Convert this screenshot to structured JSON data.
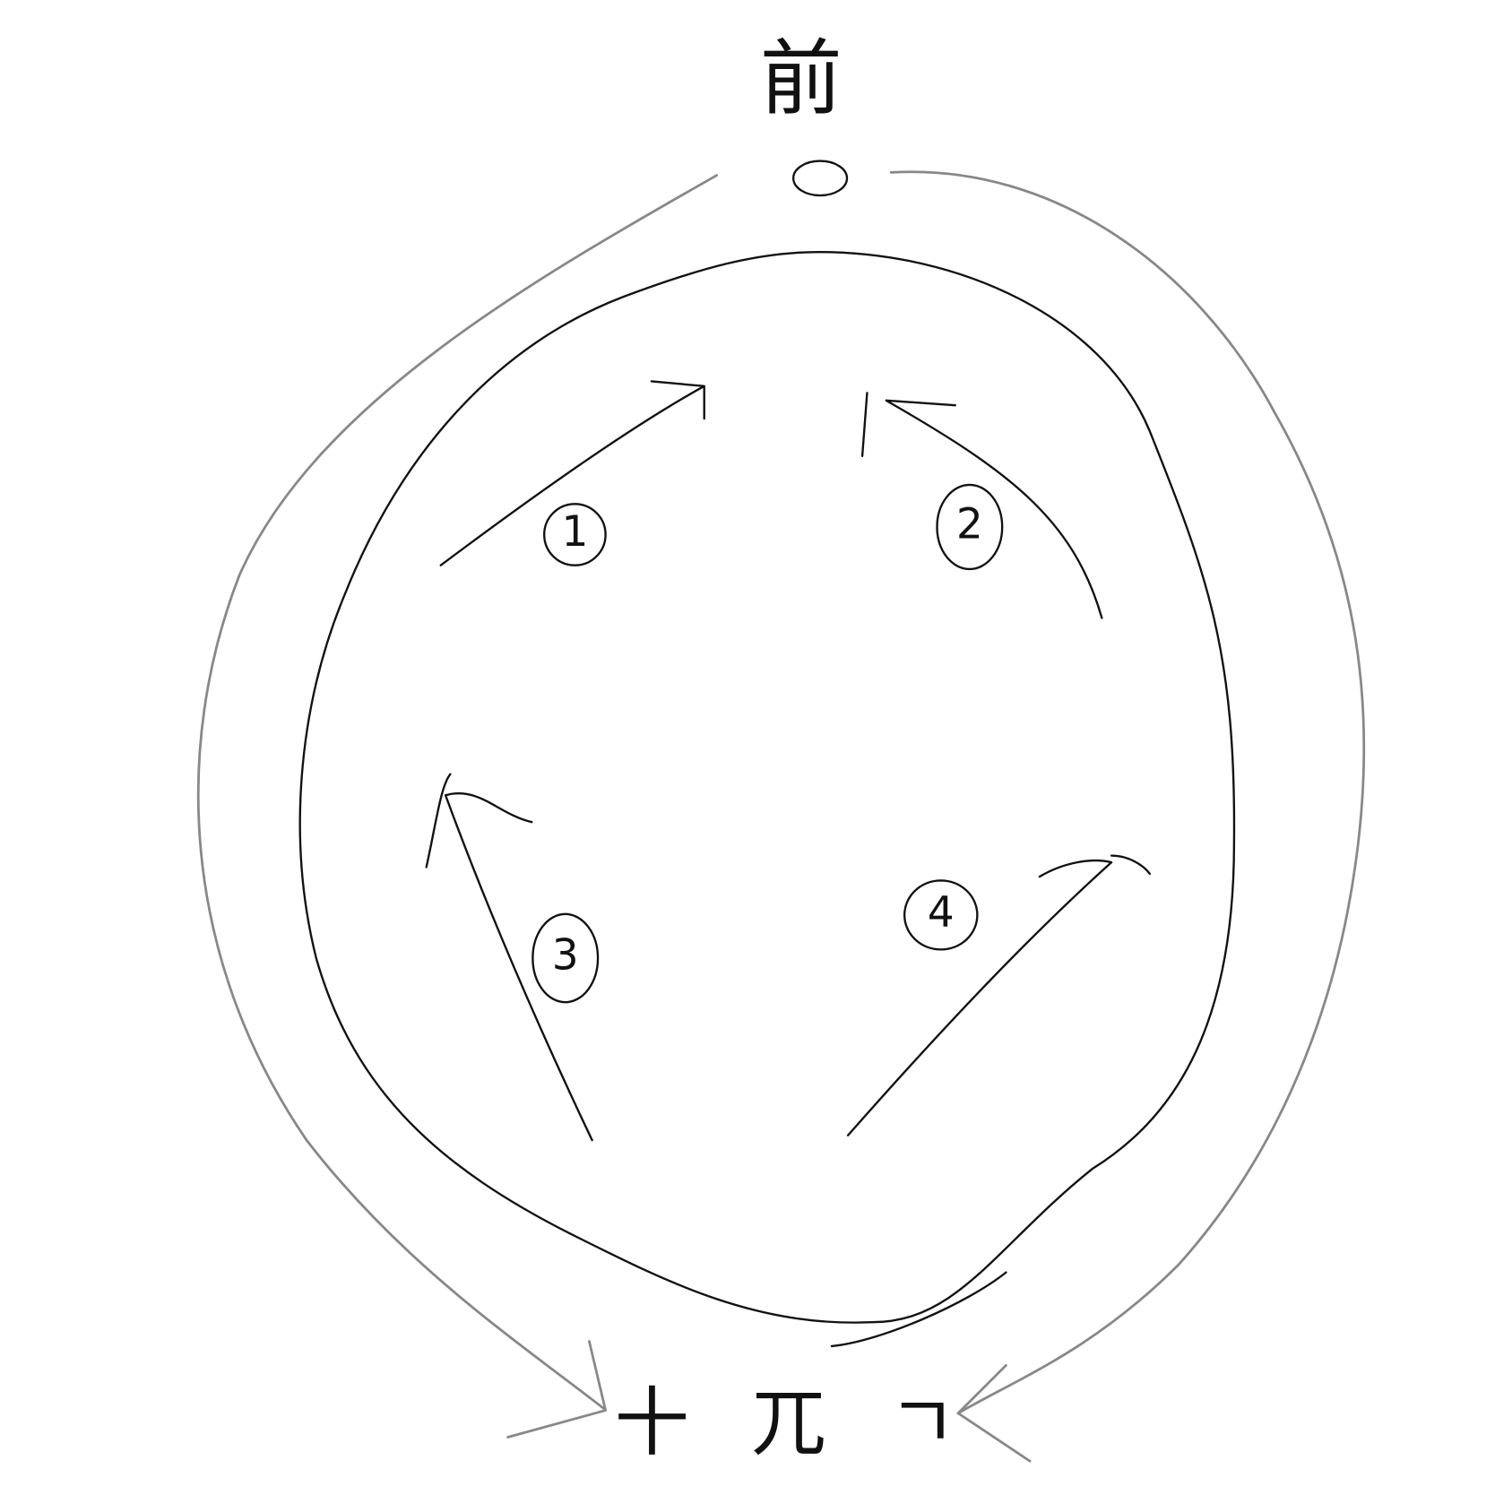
{
  "top_label": "前",
  "bottom_label": "十 兀 ㄱ",
  "steps": [
    {
      "label": "1"
    },
    {
      "label": "2"
    },
    {
      "label": "3"
    },
    {
      "label": "4"
    }
  ]
}
